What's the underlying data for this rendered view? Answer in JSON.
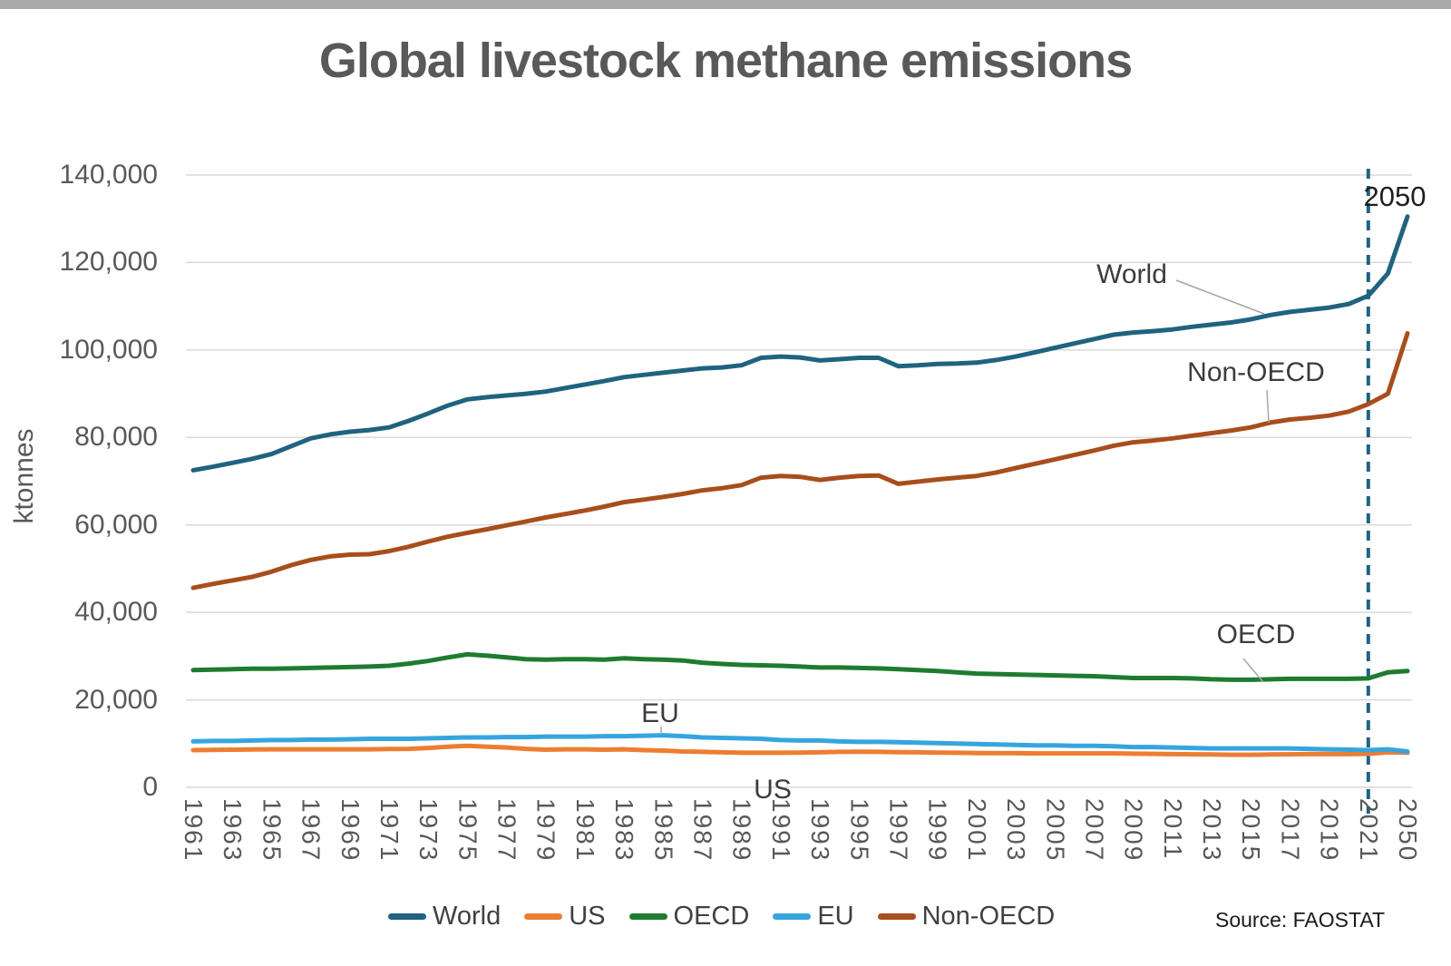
{
  "title": "Global livestock methane emissions",
  "y_axis": {
    "label": "ktonnes",
    "ticks": [
      "140,000",
      "120,000",
      "100,000",
      "80,000",
      "60,000",
      "40,000",
      "20,000",
      "0"
    ]
  },
  "x_axis": {
    "tick_labels": [
      "1961",
      "1963",
      "1965",
      "1967",
      "1969",
      "1971",
      "1973",
      "1975",
      "1977",
      "1979",
      "1981",
      "1983",
      "1985",
      "1987",
      "1989",
      "1991",
      "1993",
      "1995",
      "1997",
      "1999",
      "2001",
      "2003",
      "2005",
      "2007",
      "2009",
      "2011",
      "2013",
      "2015",
      "2017",
      "2019",
      "2021",
      "2050"
    ]
  },
  "annotations": {
    "world": "World",
    "non_oecd": "Non-OECD",
    "oecd": "OECD",
    "eu": "EU",
    "us": "US",
    "year_2050": "2050"
  },
  "legend": [
    {
      "label": "World",
      "color": "#1f6380"
    },
    {
      "label": "US",
      "color": "#ed7d31"
    },
    {
      "label": "OECD",
      "color": "#1e7b30"
    },
    {
      "label": "EU",
      "color": "#36a5df"
    },
    {
      "label": "Non-OECD",
      "color": "#a84e1c"
    }
  ],
  "source": "Source: FAOSTAT",
  "colors": {
    "grid": "#d9d9d9",
    "divider": "#1f6380",
    "leader": "#a6a6a6",
    "axis_text": "#595959"
  },
  "chart_data": {
    "type": "line",
    "title": "Global livestock methane emissions",
    "xlabel": "",
    "ylabel": "ktonnes",
    "ylim": [
      0,
      140000
    ],
    "y_step": 20000,
    "grid": true,
    "legend_position": "bottom",
    "projection_divider_year": 2021,
    "x": [
      1961,
      1962,
      1963,
      1964,
      1965,
      1966,
      1967,
      1968,
      1969,
      1970,
      1971,
      1972,
      1973,
      1974,
      1975,
      1976,
      1977,
      1978,
      1979,
      1980,
      1981,
      1982,
      1983,
      1984,
      1985,
      1986,
      1987,
      1988,
      1989,
      1990,
      1991,
      1992,
      1993,
      1994,
      1995,
      1996,
      1997,
      1998,
      1999,
      2000,
      2001,
      2002,
      2003,
      2004,
      2005,
      2006,
      2007,
      2008,
      2009,
      2010,
      2011,
      2012,
      2013,
      2014,
      2015,
      2016,
      2017,
      2018,
      2019,
      2020,
      2021,
      2030,
      2050
    ],
    "series": [
      {
        "name": "World",
        "color": "#1f6380",
        "values": [
          72500,
          73300,
          74200,
          75100,
          76200,
          78000,
          79800,
          80700,
          81300,
          81700,
          82300,
          83800,
          85500,
          87300,
          88700,
          89200,
          89600,
          90000,
          90500,
          91300,
          92100,
          92900,
          93800,
          94300,
          94800,
          95300,
          95800,
          96000,
          96500,
          98200,
          98500,
          98300,
          97600,
          97900,
          98200,
          98200,
          96300,
          96500,
          96800,
          96900,
          97100,
          97700,
          98500,
          99500,
          100500,
          101500,
          102500,
          103500,
          104000,
          104300,
          104700,
          105300,
          105800,
          106300,
          107000,
          108000,
          108700,
          109200,
          109700,
          110500,
          112400,
          117500,
          130500
        ]
      },
      {
        "name": "US",
        "color": "#ed7d31",
        "values": [
          8500,
          8550,
          8600,
          8650,
          8700,
          8700,
          8700,
          8700,
          8700,
          8700,
          8750,
          8800,
          9000,
          9300,
          9500,
          9300,
          9100,
          8800,
          8600,
          8700,
          8700,
          8600,
          8700,
          8500,
          8400,
          8200,
          8100,
          8000,
          7900,
          7900,
          7900,
          7950,
          8000,
          8100,
          8150,
          8100,
          8050,
          8000,
          7950,
          7900,
          7850,
          7800,
          7800,
          7750,
          7750,
          7750,
          7750,
          7750,
          7700,
          7650,
          7600,
          7550,
          7500,
          7450,
          7450,
          7500,
          7550,
          7600,
          7600,
          7600,
          7650,
          8000,
          7900
        ]
      },
      {
        "name": "OECD",
        "color": "#1e7b30",
        "values": [
          26800,
          26900,
          27000,
          27100,
          27100,
          27200,
          27300,
          27400,
          27500,
          27600,
          27800,
          28300,
          28900,
          29700,
          30400,
          30100,
          29700,
          29300,
          29200,
          29300,
          29300,
          29200,
          29500,
          29300,
          29200,
          29000,
          28500,
          28200,
          28000,
          27900,
          27800,
          27600,
          27400,
          27400,
          27300,
          27200,
          27000,
          26800,
          26600,
          26300,
          26000,
          25900,
          25800,
          25700,
          25600,
          25500,
          25400,
          25200,
          25000,
          25000,
          25000,
          24900,
          24700,
          24600,
          24600,
          24700,
          24800,
          24800,
          24800,
          24800,
          24900,
          26300,
          26600
        ]
      },
      {
        "name": "EU",
        "color": "#36a5df",
        "values": [
          10500,
          10600,
          10600,
          10700,
          10800,
          10800,
          10900,
          10900,
          11000,
          11100,
          11100,
          11100,
          11200,
          11300,
          11400,
          11400,
          11500,
          11500,
          11600,
          11600,
          11600,
          11700,
          11700,
          11800,
          11900,
          11700,
          11400,
          11300,
          11200,
          11100,
          10800,
          10700,
          10700,
          10500,
          10400,
          10400,
          10300,
          10200,
          10100,
          10000,
          9900,
          9800,
          9700,
          9600,
          9600,
          9500,
          9500,
          9400,
          9200,
          9200,
          9100,
          9000,
          8900,
          8900,
          8900,
          8900,
          8900,
          8800,
          8700,
          8600,
          8500,
          8700,
          8200
        ]
      },
      {
        "name": "Non-OECD",
        "color": "#a84e1c",
        "values": [
          45600,
          46500,
          47300,
          48100,
          49300,
          50800,
          52000,
          52800,
          53200,
          53300,
          54000,
          55000,
          56200,
          57300,
          58200,
          59000,
          59900,
          60800,
          61700,
          62500,
          63300,
          64200,
          65200,
          65800,
          66400,
          67100,
          67900,
          68400,
          69100,
          70800,
          71200,
          71000,
          70300,
          70800,
          71200,
          71300,
          69400,
          69900,
          70400,
          70800,
          71200,
          72000,
          73000,
          74000,
          75000,
          76000,
          77000,
          78100,
          78900,
          79300,
          79800,
          80400,
          81000,
          81600,
          82300,
          83400,
          84100,
          84500,
          85000,
          85900,
          87600,
          90000,
          103800
        ]
      }
    ]
  }
}
